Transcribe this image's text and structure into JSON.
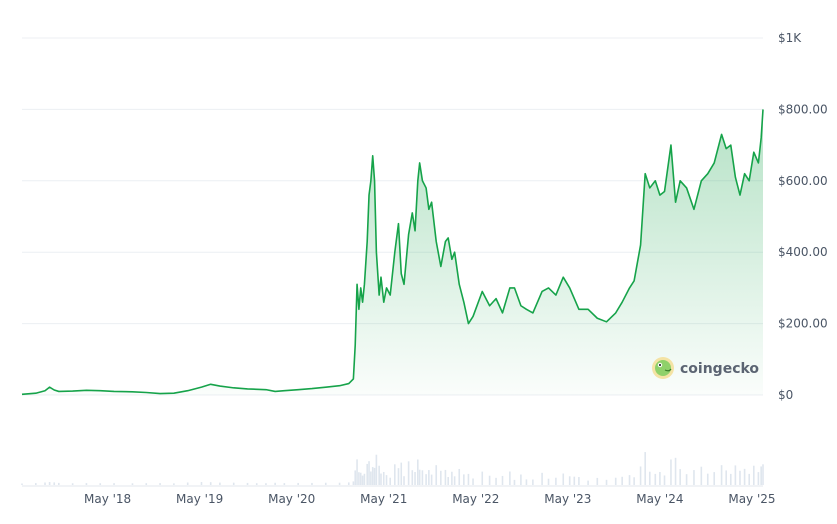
{
  "chart_data": {
    "type": "area",
    "title": "",
    "xlabel": "",
    "ylabel": "",
    "ylim": [
      0,
      1000
    ],
    "y_ticks": [
      {
        "value": 0,
        "label": "$0"
      },
      {
        "value": 200,
        "label": "$200.00"
      },
      {
        "value": 400,
        "label": "$400.00"
      },
      {
        "value": 600,
        "label": "$600.00"
      },
      {
        "value": 800,
        "label": "$800.00"
      },
      {
        "value": 1000,
        "label": "$1K"
      }
    ],
    "x_range": [
      2017.4,
      2025.45
    ],
    "x_ticks": [
      {
        "value": 2018.33,
        "label": "May '18"
      },
      {
        "value": 2019.33,
        "label": "May '19"
      },
      {
        "value": 2020.33,
        "label": "May '20"
      },
      {
        "value": 2021.33,
        "label": "May '21"
      },
      {
        "value": 2022.33,
        "label": "May '22"
      },
      {
        "value": 2023.33,
        "label": "May '23"
      },
      {
        "value": 2024.33,
        "label": "May '24"
      },
      {
        "value": 2025.33,
        "label": "May '25"
      }
    ],
    "grid": true,
    "line_color": "#16a34a",
    "fill_color": "#16a34a",
    "volume_color": "#dfe6ee",
    "series": [
      {
        "points": [
          [
            2017.4,
            2
          ],
          [
            2017.55,
            5
          ],
          [
            2017.65,
            12
          ],
          [
            2017.7,
            22
          ],
          [
            2017.75,
            14
          ],
          [
            2017.8,
            10
          ],
          [
            2017.95,
            11
          ],
          [
            2018.1,
            13
          ],
          [
            2018.25,
            12
          ],
          [
            2018.4,
            10
          ],
          [
            2018.6,
            9
          ],
          [
            2018.75,
            7
          ],
          [
            2018.9,
            4
          ],
          [
            2019.05,
            5
          ],
          [
            2019.2,
            12
          ],
          [
            2019.35,
            22
          ],
          [
            2019.45,
            30
          ],
          [
            2019.55,
            25
          ],
          [
            2019.7,
            20
          ],
          [
            2019.85,
            17
          ],
          [
            2019.95,
            16
          ],
          [
            2020.05,
            15
          ],
          [
            2020.15,
            10
          ],
          [
            2020.25,
            12
          ],
          [
            2020.4,
            15
          ],
          [
            2020.55,
            18
          ],
          [
            2020.7,
            22
          ],
          [
            2020.85,
            26
          ],
          [
            2020.95,
            32
          ],
          [
            2021.0,
            45
          ],
          [
            2021.02,
            140
          ],
          [
            2021.04,
            310
          ],
          [
            2021.06,
            240
          ],
          [
            2021.08,
            300
          ],
          [
            2021.1,
            260
          ],
          [
            2021.12,
            310
          ],
          [
            2021.15,
            430
          ],
          [
            2021.17,
            560
          ],
          [
            2021.19,
            600
          ],
          [
            2021.21,
            670
          ],
          [
            2021.23,
            600
          ],
          [
            2021.25,
            400
          ],
          [
            2021.28,
            280
          ],
          [
            2021.3,
            330
          ],
          [
            2021.33,
            260
          ],
          [
            2021.36,
            300
          ],
          [
            2021.4,
            280
          ],
          [
            2021.45,
            400
          ],
          [
            2021.49,
            480
          ],
          [
            2021.52,
            340
          ],
          [
            2021.55,
            310
          ],
          [
            2021.6,
            450
          ],
          [
            2021.64,
            510
          ],
          [
            2021.67,
            460
          ],
          [
            2021.7,
            600
          ],
          [
            2021.72,
            650
          ],
          [
            2021.75,
            600
          ],
          [
            2021.79,
            580
          ],
          [
            2021.82,
            520
          ],
          [
            2021.85,
            540
          ],
          [
            2021.9,
            430
          ],
          [
            2021.95,
            360
          ],
          [
            2022.0,
            430
          ],
          [
            2022.03,
            440
          ],
          [
            2022.07,
            380
          ],
          [
            2022.1,
            400
          ],
          [
            2022.15,
            310
          ],
          [
            2022.2,
            260
          ],
          [
            2022.25,
            200
          ],
          [
            2022.3,
            220
          ],
          [
            2022.4,
            290
          ],
          [
            2022.48,
            250
          ],
          [
            2022.55,
            270
          ],
          [
            2022.62,
            230
          ],
          [
            2022.7,
            300
          ],
          [
            2022.75,
            300
          ],
          [
            2022.82,
            250
          ],
          [
            2022.88,
            240
          ],
          [
            2022.95,
            230
          ],
          [
            2023.05,
            290
          ],
          [
            2023.12,
            300
          ],
          [
            2023.2,
            280
          ],
          [
            2023.28,
            330
          ],
          [
            2023.35,
            300
          ],
          [
            2023.4,
            270
          ],
          [
            2023.45,
            240
          ],
          [
            2023.55,
            240
          ],
          [
            2023.65,
            215
          ],
          [
            2023.75,
            205
          ],
          [
            2023.85,
            230
          ],
          [
            2023.92,
            260
          ],
          [
            2024.0,
            300
          ],
          [
            2024.05,
            320
          ],
          [
            2024.12,
            420
          ],
          [
            2024.17,
            620
          ],
          [
            2024.22,
            580
          ],
          [
            2024.28,
            600
          ],
          [
            2024.33,
            560
          ],
          [
            2024.38,
            570
          ],
          [
            2024.45,
            700
          ],
          [
            2024.5,
            540
          ],
          [
            2024.55,
            600
          ],
          [
            2024.62,
            580
          ],
          [
            2024.7,
            520
          ],
          [
            2024.78,
            600
          ],
          [
            2024.85,
            620
          ],
          [
            2024.92,
            650
          ],
          [
            2025.0,
            730
          ],
          [
            2025.05,
            690
          ],
          [
            2025.1,
            700
          ],
          [
            2025.15,
            610
          ],
          [
            2025.2,
            560
          ],
          [
            2025.25,
            620
          ],
          [
            2025.3,
            600
          ],
          [
            2025.35,
            680
          ],
          [
            2025.4,
            650
          ],
          [
            2025.43,
            720
          ],
          [
            2025.45,
            800
          ]
        ]
      }
    ]
  },
  "watermark": {
    "text": "coingecko",
    "icon": "gecko-logo-icon"
  }
}
